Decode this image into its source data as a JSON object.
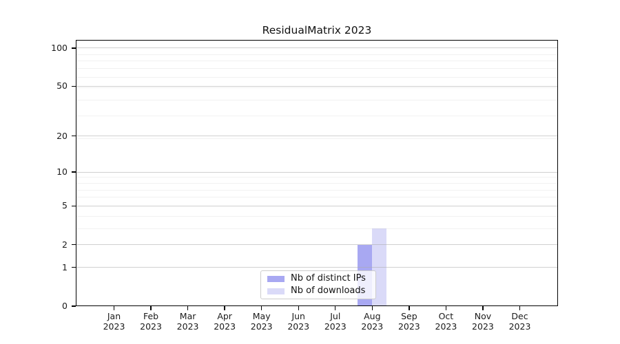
{
  "chart_data": {
    "type": "bar",
    "title": "ResidualMatrix 2023",
    "x_months": [
      "Jan",
      "Feb",
      "Mar",
      "Apr",
      "May",
      "Jun",
      "Jul",
      "Aug",
      "Sep",
      "Oct",
      "Nov",
      "Dec"
    ],
    "x_year": "2023",
    "series": [
      {
        "name": "Nb of distinct IPs",
        "color": "#a8a8f2",
        "values": [
          0,
          0,
          0,
          0,
          0,
          0,
          0,
          2,
          0,
          0,
          0,
          0
        ]
      },
      {
        "name": "Nb of downloads",
        "color": "#dadaf8",
        "values": [
          0,
          0,
          0,
          0,
          0,
          0,
          0,
          3,
          0,
          0,
          0,
          0
        ]
      }
    ],
    "yscale": "log1p",
    "ylim": [
      0,
      116
    ],
    "yticks": [
      0,
      1,
      2,
      5,
      10,
      20,
      50,
      100
    ],
    "y_minor_values": [
      3,
      4,
      6,
      7,
      8,
      9,
      19,
      29,
      39,
      49,
      59,
      69,
      79,
      89
    ],
    "grid": true,
    "legend_position": "lower center",
    "colors": {
      "grid_major": "rgba(170,170,170,0.55)",
      "grid_minor": "rgba(170,170,170,0.16)",
      "spine": "#000000",
      "text": "#1a1a1a"
    }
  }
}
